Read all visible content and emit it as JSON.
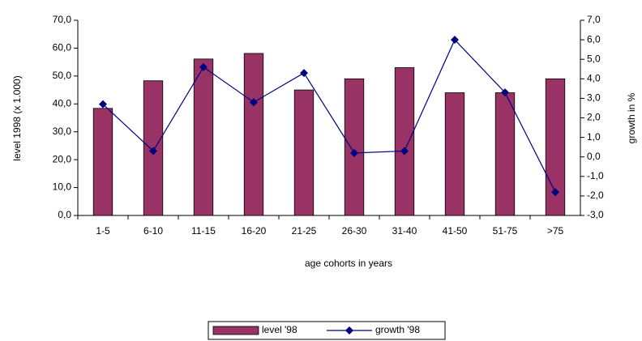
{
  "chart_data": {
    "type": "bar_line",
    "x_label": "age cohorts in years",
    "y_label": "level 1998 (x 1.000)",
    "y2_label": "growth in %",
    "categories": [
      "1-5",
      "6-10",
      "11-15",
      "16-20",
      "21-25",
      "26-30",
      "31-40",
      "41-50",
      "51-75",
      ">75"
    ],
    "series": [
      {
        "name": "level '98",
        "type": "bar",
        "color": "#993366",
        "values": [
          38.4,
          48.3,
          56.1,
          58.1,
          45,
          49,
          53,
          44,
          44,
          49
        ]
      },
      {
        "name": "growth '98",
        "type": "line",
        "axis": "y2",
        "color": "#000080",
        "values": [
          2.7,
          0.3,
          4.6,
          2.8,
          4.3,
          0.2,
          0.3,
          6.0,
          3.3,
          -1.8
        ]
      }
    ],
    "ylim": [
      0,
      70
    ],
    "yticks": [
      {
        "value": 0,
        "label": "0,0"
      },
      {
        "value": 10,
        "label": "10,0"
      },
      {
        "value": 20,
        "label": "20,0"
      },
      {
        "value": 30,
        "label": "30,0"
      },
      {
        "value": 40,
        "label": "40,0"
      },
      {
        "value": 50,
        "label": "50,0"
      },
      {
        "value": 60,
        "label": "60,0"
      },
      {
        "value": 70,
        "label": "70,0"
      }
    ],
    "y2lim": [
      -3,
      7
    ],
    "y2ticks": [
      {
        "value": -3,
        "label": "-3,0"
      },
      {
        "value": -2,
        "label": "-2,0"
      },
      {
        "value": -1,
        "label": "-1,0"
      },
      {
        "value": 0,
        "label": "0,0"
      },
      {
        "value": 1,
        "label": "1,0"
      },
      {
        "value": 2,
        "label": "2,0"
      },
      {
        "value": 3,
        "label": "3,0"
      },
      {
        "value": 4,
        "label": "4,0"
      },
      {
        "value": 5,
        "label": "5,0"
      },
      {
        "value": 6,
        "label": "6,0"
      },
      {
        "value": 7,
        "label": "7,0"
      }
    ],
    "grid": false
  }
}
